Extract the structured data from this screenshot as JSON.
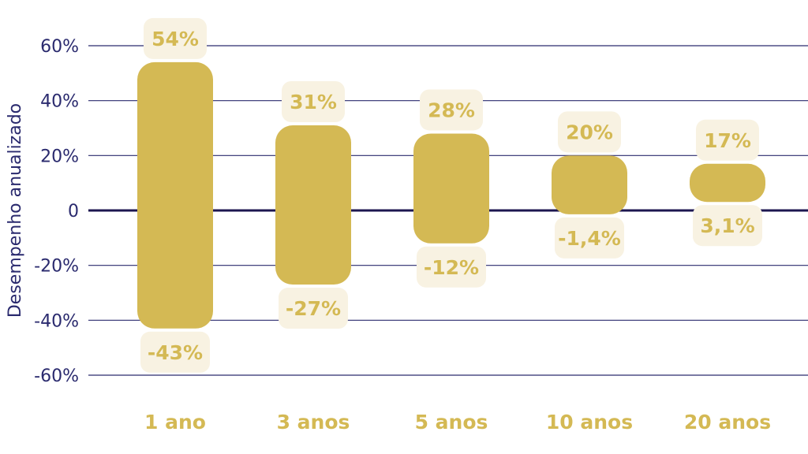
{
  "colors": {
    "bar": "#d4b954",
    "label_bg": "#f8f2e2",
    "label_text": "#d4b954",
    "axis_text": "#2a2a6e",
    "grid": "#2a2a6e",
    "zero_line": "#1c1650"
  },
  "chart_data": {
    "type": "bar",
    "subtype": "floating-range",
    "title": "",
    "xlabel": "",
    "ylabel": "Desempenho anualizado",
    "ylim": [
      -60,
      60
    ],
    "y_ticks": [
      60,
      40,
      20,
      0,
      -20,
      -40,
      -60
    ],
    "y_tick_labels": [
      "60%",
      "40%",
      "20%",
      "0",
      "-20%",
      "-40%",
      "-60%"
    ],
    "grid": true,
    "categories": [
      "1 ano",
      "3 anos",
      "5 anos",
      "10 anos",
      "20 anos"
    ],
    "series": [
      {
        "values_max": [
          54,
          31,
          28,
          20,
          17
        ]
      },
      {
        "values_min": [
          -43,
          -27,
          -12,
          -1.4,
          3.1
        ]
      }
    ],
    "max_labels": [
      "54%",
      "31%",
      "28%",
      "20%",
      "17%"
    ],
    "min_labels": [
      "-43%",
      "-27%",
      "-12%",
      "-1,4%",
      "3,1%"
    ]
  }
}
